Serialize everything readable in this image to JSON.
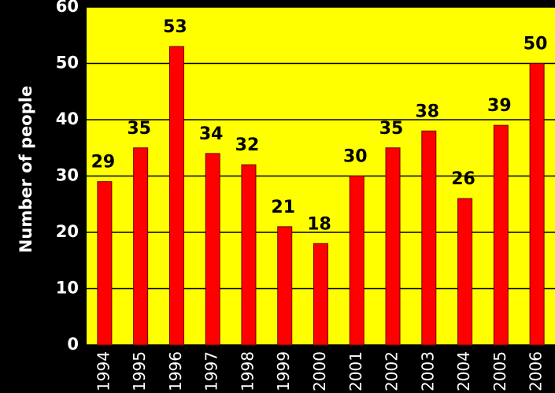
{
  "chart_data": {
    "type": "bar",
    "y_label": "Number of people",
    "categories": [
      "1994",
      "1995",
      "1996",
      "1997",
      "1998",
      "1999",
      "2000",
      "2001",
      "2002",
      "2003",
      "2004",
      "2005",
      "2006"
    ],
    "values": [
      29,
      35,
      53,
      34,
      32,
      21,
      18,
      30,
      35,
      38,
      26,
      39,
      50
    ],
    "color": "#ff0000",
    "background": "#ffff00",
    "ylim": [
      0,
      60
    ],
    "yticks": [
      0,
      10,
      20,
      30,
      40,
      50,
      60
    ],
    "grid": true
  }
}
